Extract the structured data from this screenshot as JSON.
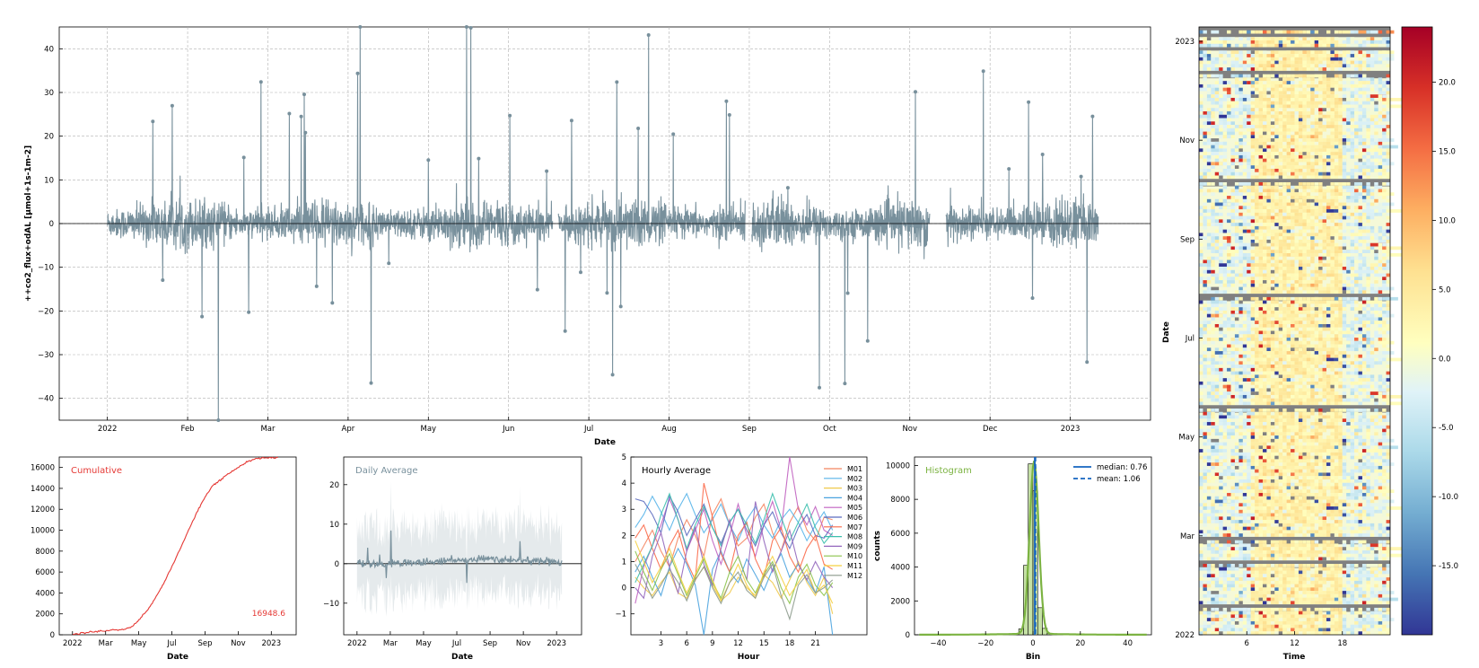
{
  "colors": {
    "main_series": "#78909c",
    "cumulative": "#e53935",
    "daily": "#78909c",
    "daily_band": "#cfd8dc",
    "hist": "#7cb342",
    "hist_fill": "#c5e1a5",
    "median": "#1565c0",
    "mean": "#1565c0",
    "grid": "#b0b0b0",
    "heatmap_missing": "#808080"
  },
  "chart_data": [
    {
      "id": "timeseries",
      "type": "scatter",
      "xlabel": "Date",
      "ylabel": "++co2_flux+odAL  [µmol+1s-1m-2]",
      "ylim": [
        -45,
        45
      ],
      "yticks": [
        40,
        30,
        20,
        10,
        0,
        -10,
        -20,
        -30,
        -40
      ],
      "ytick_labels": [
        "40",
        "30",
        "20",
        "10",
        "0",
        "−10",
        "−20",
        "−30",
        "−40"
      ],
      "xticks": [
        "2022",
        "Feb",
        "Mar",
        "Apr",
        "May",
        "Jun",
        "Jul",
        "Aug",
        "Sep",
        "Oct",
        "Nov",
        "Dec",
        "2023"
      ],
      "x_range_months": [
        -0.6,
        13.0
      ],
      "data_range_months": [
        0.0,
        12.35
      ],
      "gaps_months": [
        [
          5.55,
          5.62
        ],
        [
          7.95,
          8.03
        ],
        [
          10.25,
          10.45
        ]
      ],
      "grid": true,
      "noise_scale": 2.2,
      "spike_rate": 0.012
    },
    {
      "id": "cumulative",
      "type": "line",
      "title": "Cumulative",
      "xlabel": "Date",
      "ylim": [
        0,
        17000
      ],
      "yticks": [
        0,
        2000,
        4000,
        6000,
        8000,
        10000,
        12000,
        14000,
        16000
      ],
      "xticks": [
        "2022",
        "Mar",
        "May",
        "Jul",
        "Sep",
        "Nov",
        "2023"
      ],
      "x_range_months": [
        -0.8,
        13.5
      ],
      "x": [
        0,
        0.5,
        1,
        1.5,
        2,
        2.5,
        3,
        3.5,
        4,
        4.5,
        5,
        5.5,
        6,
        6.5,
        7,
        7.5,
        8,
        8.5,
        9,
        9.5,
        10,
        10.5,
        11,
        11.5,
        12,
        12.4
      ],
      "values": [
        0,
        150,
        250,
        330,
        400,
        450,
        500,
        700,
        1400,
        2300,
        3500,
        4900,
        6500,
        8200,
        10000,
        11700,
        13200,
        14300,
        14900,
        15500,
        16000,
        16500,
        16800,
        16900,
        16940,
        16948.6
      ],
      "final_label": "16948.6"
    },
    {
      "id": "daily",
      "type": "line",
      "title": "Daily Average",
      "xlabel": "Date",
      "ylim": [
        -18,
        27
      ],
      "yticks": [
        20,
        10,
        0,
        -10
      ],
      "ytick_labels": [
        "20",
        "10",
        "0",
        "−10"
      ],
      "xticks": [
        "2022",
        "Mar",
        "May",
        "Jul",
        "Sep",
        "Nov",
        "2023"
      ],
      "x_range_months": [
        -0.8,
        13.5
      ],
      "data_range_months": [
        0.0,
        12.35
      ]
    },
    {
      "id": "hourly",
      "type": "line",
      "title": "Hourly Average",
      "xlabel": "Hour",
      "ylim": [
        -1.8,
        5.0
      ],
      "yticks": [
        5,
        4,
        3,
        2,
        1,
        0,
        -1
      ],
      "ytick_labels": [
        "5",
        "4",
        "3",
        "2",
        "1",
        "0",
        "−1"
      ],
      "xticks": [
        3,
        6,
        9,
        12,
        15,
        18,
        21
      ],
      "xlim": [
        -0.5,
        27
      ],
      "legend_position": "right",
      "series": [
        {
          "name": "M01",
          "color": "#f4845f",
          "values": [
            1.0,
            1.6,
            2.2,
            1.4,
            0.8,
            1.9,
            2.6,
            2.0,
            1.2,
            2.8,
            3.4,
            2.4,
            1.6,
            1.9,
            2.7,
            3.2,
            2.1,
            1.4,
            2.5,
            3.1,
            2.2,
            1.8,
            2.7,
            2.6
          ]
        },
        {
          "name": "M02",
          "color": "#56b4e9",
          "values": [
            2.3,
            2.8,
            3.5,
            2.9,
            2.2,
            3.0,
            3.6,
            2.8,
            2.1,
            2.6,
            3.2,
            2.4,
            1.8,
            2.6,
            3.1,
            2.4,
            1.9,
            2.6,
            3.0,
            2.5,
            1.8,
            2.4,
            2.9,
            2.2
          ]
        },
        {
          "name": "M03",
          "color": "#f0c94a",
          "values": [
            0.4,
            0.0,
            -0.3,
            0.2,
            0.6,
            -0.2,
            -0.4,
            0.3,
            0.8,
            0.1,
            -0.5,
            -0.2,
            0.4,
            0.0,
            -0.3,
            0.5,
            0.2,
            -0.4,
            0.3,
            1.0,
            0.2,
            -0.3,
            0.4,
            -1.0
          ]
        },
        {
          "name": "M04",
          "color": "#4aa3df",
          "values": [
            0.6,
            1.2,
            0.4,
            -0.3,
            0.8,
            1.5,
            0.9,
            0.1,
            -1.8,
            0.7,
            1.4,
            0.6,
            0.2,
            1.1,
            0.5,
            -0.1,
            0.7,
            1.3,
            0.4,
            0.9,
            0.3,
            -0.2,
            0.8,
            -1.8
          ]
        },
        {
          "name": "M05",
          "color": "#c060c0",
          "values": [
            -0.6,
            0.8,
            1.6,
            2.4,
            3.4,
            2.6,
            1.4,
            2.2,
            3.0,
            1.8,
            0.9,
            2.0,
            3.2,
            2.0,
            1.2,
            2.4,
            3.3,
            2.2,
            5.0,
            3.0,
            2.4,
            3.1,
            2.2,
            2.0
          ]
        },
        {
          "name": "M06",
          "color": "#5b6bbf",
          "values": [
            3.4,
            3.3,
            2.8,
            2.1,
            3.5,
            2.9,
            2.0,
            2.6,
            3.2,
            2.3,
            1.7,
            2.5,
            3.0,
            2.2,
            1.6,
            2.4,
            2.9,
            2.1,
            1.5,
            2.3,
            2.8,
            2.0,
            1.9,
            2.4
          ]
        },
        {
          "name": "M07",
          "color": "#fb6a4a",
          "values": [
            1.9,
            2.4,
            1.5,
            0.7,
            1.6,
            2.2,
            1.0,
            0.3,
            4.0,
            2.7,
            1.3,
            0.6,
            2.0,
            2.5,
            1.1,
            0.4,
            1.8,
            2.3,
            1.2,
            0.6,
            1.5,
            2.0,
            0.9,
            0.7
          ]
        },
        {
          "name": "M08",
          "color": "#3bbfad",
          "values": [
            0.2,
            0.9,
            1.6,
            2.8,
            3.6,
            2.6,
            1.5,
            2.4,
            3.1,
            2.3,
            1.6,
            2.5,
            3.0,
            2.4,
            1.7,
            2.6,
            3.6,
            2.7,
            1.8,
            2.5,
            3.2,
            2.3,
            1.7,
            2.1
          ]
        },
        {
          "name": "M09",
          "color": "#9467bd",
          "values": [
            0.0,
            -0.4,
            1.2,
            2.1,
            0.8,
            -0.2,
            1.4,
            2.3,
            0.9,
            0.1,
            1.5,
            2.6,
            1.2,
            0.3,
            3.3,
            1.8,
            0.6,
            1.4,
            2.2,
            0.9,
            0.3,
            1.0,
            0.4,
            0.0
          ]
        },
        {
          "name": "M10",
          "color": "#8bc34a",
          "values": [
            1.4,
            0.6,
            -0.1,
            0.7,
            1.3,
            0.5,
            -0.3,
            0.4,
            1.1,
            0.2,
            -0.4,
            0.6,
            1.2,
            0.3,
            -0.2,
            0.5,
            1.0,
            0.0,
            -0.6,
            0.4,
            0.9,
            0.1,
            -0.3,
            0.2
          ]
        },
        {
          "name": "M11",
          "color": "#f5d042",
          "values": [
            1.8,
            1.0,
            0.2,
            0.8,
            1.5,
            0.6,
            -0.2,
            0.5,
            1.2,
            0.3,
            -0.5,
            0.2,
            0.9,
            0.1,
            -0.4,
            0.6,
            1.2,
            0.4,
            -0.3,
            0.2,
            0.7,
            -0.2,
            0.1,
            -0.6
          ]
        },
        {
          "name": "M12",
          "color": "#8c9a8c",
          "values": [
            0.9,
            0.3,
            -0.4,
            0.1,
            0.7,
            0.2,
            -0.5,
            0.3,
            0.8,
            0.0,
            -0.6,
            0.2,
            0.6,
            -0.1,
            -0.4,
            0.4,
            0.9,
            -0.3,
            -1.2,
            0.1,
            0.5,
            -0.2,
            0.0,
            0.3
          ]
        }
      ]
    },
    {
      "id": "histogram",
      "type": "bar",
      "title": "Histogram",
      "xlabel": "Bin",
      "ylabel": "counts",
      "xlim": [
        -50,
        50
      ],
      "ylim": [
        0,
        10500
      ],
      "xticks": [
        -40,
        -20,
        0,
        20,
        40
      ],
      "xtick_labels": [
        "−40",
        "−20",
        "0",
        "20",
        "40"
      ],
      "yticks": [
        0,
        2000,
        4000,
        6000,
        8000,
        10000
      ],
      "bins": [
        -7,
        -5,
        -3,
        -1,
        1,
        3,
        5,
        7
      ],
      "values": [
        80,
        350,
        4100,
        10100,
        8500,
        1600,
        380,
        90
      ],
      "median": 0.76,
      "mean": 1.06,
      "legend": [
        "median: 0.76",
        "mean: 1.06"
      ],
      "legend_position": "top-right"
    },
    {
      "id": "heatmap",
      "type": "heatmap",
      "xlabel": "Time",
      "ylabel": "Date",
      "xticks": [
        6,
        12,
        18
      ],
      "xlim": [
        0,
        24
      ],
      "yticks": [
        "2023",
        "Nov",
        "Sep",
        "Jul",
        "May",
        "Mar",
        "2022"
      ],
      "colorbar_ticks": [
        20.0,
        15.0,
        10.0,
        5.0,
        0.0,
        -5.0,
        -10.0,
        -15.0
      ],
      "colorbar_labels": [
        "20.0",
        "15.0",
        "10.0",
        "5.0",
        "0.0",
        "-5.0",
        "-10.0",
        "-15.0"
      ],
      "vmin": -20,
      "vmax": 24,
      "missing_rows_fraction": [
        0.0,
        0.07,
        0.25,
        0.44,
        0.62,
        0.84,
        0.88,
        0.95
      ]
    }
  ]
}
